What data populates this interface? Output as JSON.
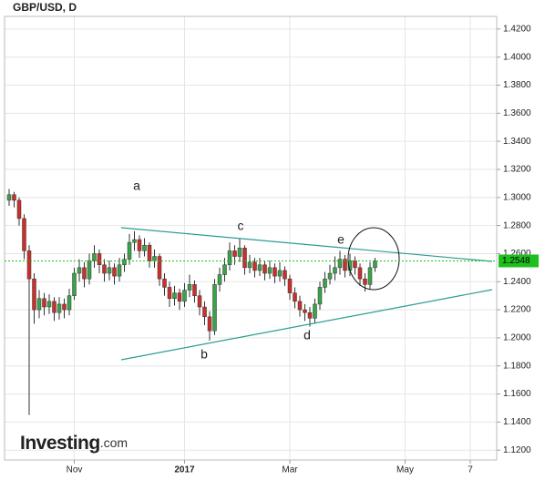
{
  "chart_data": {
    "type": "candlestick",
    "title": "GBP/USD, D",
    "logo": {
      "brand": "Investing",
      "suffix": ".com"
    },
    "annotations": [
      "a",
      "b",
      "c",
      "d",
      "e"
    ],
    "colors": {
      "up": "#3aa34a",
      "down": "#c9302c",
      "wick": "#333333",
      "price_line": "#1fbf1f",
      "trend": "#2a9d8f"
    },
    "grid": true,
    "categories": [
      null,
      null,
      null,
      null,
      null,
      null,
      null,
      null,
      null,
      null,
      null,
      null,
      null,
      "Nov",
      null,
      null,
      null,
      null,
      null,
      null,
      null,
      null,
      null,
      null,
      null,
      null,
      null,
      null,
      null,
      null,
      null,
      null,
      null,
      null,
      null,
      "2017",
      null,
      null,
      null,
      null,
      null,
      null,
      null,
      null,
      null,
      null,
      null,
      null,
      null,
      null,
      null,
      null,
      null,
      null,
      null,
      null,
      "Mar",
      null,
      null,
      null,
      null,
      null,
      null,
      null,
      null,
      null,
      null,
      null,
      null,
      null,
      null,
      null,
      null,
      null,
      null,
      null,
      null,
      null,
      null,
      "May",
      null,
      null,
      null,
      null,
      null,
      null,
      null,
      null,
      null,
      null,
      null,
      null,
      "7",
      null,
      null,
      null,
      null,
      null
    ],
    "open": [
      1.298,
      1.302,
      1.298,
      1.285,
      1.262,
      1.242,
      1.22,
      1.228,
      1.222,
      1.226,
      1.218,
      1.224,
      1.22,
      1.23,
      1.246,
      1.25,
      1.242,
      1.255,
      1.26,
      1.252,
      1.246,
      1.25,
      1.244,
      1.252,
      1.256,
      1.268,
      1.27,
      1.262,
      1.266,
      1.255,
      1.258,
      1.242,
      1.236,
      1.228,
      1.232,
      1.226,
      1.234,
      1.238,
      1.23,
      1.222,
      1.215,
      1.205,
      1.238,
      1.245,
      1.252,
      1.262,
      1.258,
      1.264,
      1.25,
      1.254,
      1.248,
      1.252,
      1.246,
      1.25,
      1.244,
      1.248,
      1.242,
      1.232,
      1.226,
      1.22,
      1.218,
      1.214,
      1.224,
      1.236,
      1.242,
      1.246,
      1.25,
      1.256,
      1.248,
      1.255,
      1.25,
      1.242,
      1.238,
      1.25,
      null,
      null,
      null,
      null,
      null,
      null,
      null,
      null,
      null,
      null,
      null,
      null,
      null,
      null,
      null,
      null,
      null,
      null,
      null,
      null,
      null,
      null,
      null,
      null
    ],
    "high": [
      1.306,
      1.304,
      1.3,
      1.288,
      1.266,
      1.246,
      1.234,
      1.232,
      1.231,
      1.229,
      1.229,
      1.228,
      1.235,
      1.25,
      1.256,
      1.254,
      1.26,
      1.266,
      1.263,
      1.256,
      1.255,
      1.253,
      1.257,
      1.26,
      1.274,
      1.276,
      1.273,
      1.271,
      1.268,
      1.263,
      1.26,
      1.246,
      1.24,
      1.237,
      1.235,
      1.239,
      1.245,
      1.241,
      1.234,
      1.226,
      1.219,
      1.242,
      1.25,
      1.257,
      1.268,
      1.266,
      1.271,
      1.266,
      1.259,
      1.257,
      1.257,
      1.255,
      1.255,
      1.253,
      1.254,
      1.251,
      1.245,
      1.236,
      1.23,
      1.224,
      1.222,
      1.228,
      1.24,
      1.247,
      1.252,
      1.258,
      1.262,
      1.259,
      1.26,
      1.258,
      1.253,
      1.246,
      1.254,
      1.257,
      null,
      null,
      null,
      null,
      null,
      null,
      null,
      null,
      null,
      null,
      null,
      null,
      null,
      null,
      null,
      null,
      null,
      null,
      null,
      null,
      null,
      null,
      null,
      null
    ],
    "low": [
      1.294,
      1.293,
      1.28,
      1.256,
      1.145,
      1.21,
      1.214,
      1.216,
      1.217,
      1.212,
      1.213,
      1.214,
      1.216,
      1.227,
      1.24,
      1.236,
      1.238,
      1.25,
      1.246,
      1.24,
      1.241,
      1.238,
      1.24,
      1.247,
      1.252,
      1.262,
      1.257,
      1.258,
      1.25,
      1.25,
      1.237,
      1.23,
      1.222,
      1.223,
      1.22,
      1.222,
      1.229,
      1.225,
      1.216,
      1.209,
      1.198,
      1.202,
      1.233,
      1.24,
      1.248,
      1.252,
      1.254,
      1.245,
      1.246,
      1.243,
      1.244,
      1.241,
      1.242,
      1.239,
      1.24,
      1.237,
      1.227,
      1.221,
      1.215,
      1.212,
      1.208,
      1.21,
      1.22,
      1.232,
      1.238,
      1.241,
      1.245,
      1.243,
      1.244,
      1.245,
      1.237,
      1.233,
      1.235,
      1.247,
      null,
      null,
      null,
      null,
      null,
      null,
      null,
      null,
      null,
      null,
      null,
      null,
      null,
      null,
      null,
      null,
      null,
      null,
      null,
      null,
      null,
      null,
      null,
      null
    ],
    "close": [
      1.302,
      1.298,
      1.285,
      1.262,
      1.242,
      1.22,
      1.228,
      1.222,
      1.226,
      1.218,
      1.224,
      1.22,
      1.23,
      1.246,
      1.25,
      1.242,
      1.255,
      1.26,
      1.252,
      1.246,
      1.25,
      1.244,
      1.252,
      1.256,
      1.268,
      1.27,
      1.262,
      1.266,
      1.255,
      1.258,
      1.242,
      1.236,
      1.228,
      1.232,
      1.226,
      1.234,
      1.238,
      1.23,
      1.222,
      1.215,
      1.205,
      1.238,
      1.245,
      1.252,
      1.262,
      1.258,
      1.264,
      1.25,
      1.254,
      1.248,
      1.252,
      1.246,
      1.25,
      1.244,
      1.248,
      1.242,
      1.232,
      1.226,
      1.22,
      1.218,
      1.214,
      1.224,
      1.236,
      1.242,
      1.246,
      1.25,
      1.256,
      1.248,
      1.255,
      1.25,
      1.242,
      1.238,
      1.25,
      1.2548,
      null,
      null,
      null,
      null,
      null,
      null,
      null,
      null,
      null,
      null,
      null,
      null,
      null,
      null,
      null,
      null,
      null,
      null,
      null,
      null,
      null,
      null,
      null,
      null
    ],
    "ylim": [
      1.113,
      1.429
    ],
    "yticks": [
      {
        "value": 1.12,
        "label": "1.1200"
      },
      {
        "value": 1.14,
        "label": "1.1400"
      },
      {
        "value": 1.16,
        "label": "1.1600"
      },
      {
        "value": 1.18,
        "label": "1.1800"
      },
      {
        "value": 1.2,
        "label": "1.2000"
      },
      {
        "value": 1.22,
        "label": "1.2200"
      },
      {
        "value": 1.24,
        "label": "1.2400"
      },
      {
        "value": 1.26,
        "label": "1.2600"
      },
      {
        "value": 1.28,
        "label": "1.2800"
      },
      {
        "value": 1.3,
        "label": "1.3000"
      },
      {
        "value": 1.32,
        "label": "1.3200"
      },
      {
        "value": 1.34,
        "label": "1.3400"
      },
      {
        "value": 1.36,
        "label": "1.3600"
      },
      {
        "value": 1.38,
        "label": "1.3800"
      },
      {
        "value": 1.4,
        "label": "1.4000"
      },
      {
        "value": 1.42,
        "label": "1.4200"
      }
    ]
  }
}
